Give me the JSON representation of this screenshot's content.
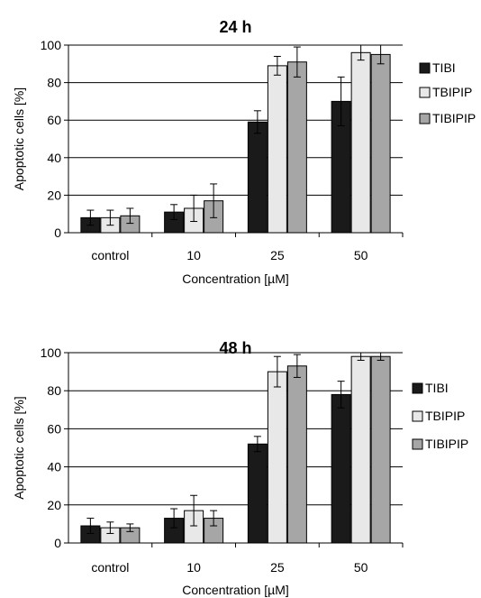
{
  "chart_data": [
    {
      "type": "bar",
      "title": "24 h",
      "xlabel": "Concentration [µM]",
      "ylabel": "Apoptotic cells [%]",
      "ylim": [
        0,
        100
      ],
      "yticks": [
        0,
        20,
        40,
        60,
        80,
        100
      ],
      "grid": true,
      "legend_position": "right",
      "categories": [
        "control",
        "10",
        "25",
        "50"
      ],
      "series": [
        {
          "name": "TIBI",
          "color": "#1a1a1a",
          "values": [
            8,
            11,
            59,
            70
          ],
          "errors": [
            4,
            4,
            6,
            13
          ]
        },
        {
          "name": "TBIPIP",
          "color": "#e8e8e8",
          "values": [
            8,
            13,
            89,
            96
          ],
          "errors": [
            4,
            7,
            5,
            4
          ]
        },
        {
          "name": "TIBIPIP",
          "color": "#a6a6a6",
          "values": [
            9,
            17,
            91,
            95
          ],
          "errors": [
            4,
            9,
            8,
            5
          ]
        }
      ]
    },
    {
      "type": "bar",
      "title": "48 h",
      "xlabel": "Concentration [µM]",
      "ylabel": "Apoptotic cells [%]",
      "ylim": [
        0,
        100
      ],
      "yticks": [
        0,
        20,
        40,
        60,
        80,
        100
      ],
      "grid": true,
      "legend_position": "right",
      "categories": [
        "control",
        "10",
        "25",
        "50"
      ],
      "series": [
        {
          "name": "TIBI",
          "color": "#1a1a1a",
          "values": [
            9,
            13,
            52,
            78
          ],
          "errors": [
            4,
            5,
            4,
            7
          ]
        },
        {
          "name": "TBIPIP",
          "color": "#e8e8e8",
          "values": [
            8,
            17,
            90,
            98
          ],
          "errors": [
            3,
            8,
            8,
            2
          ]
        },
        {
          "name": "TIBIPIP",
          "color": "#a6a6a6",
          "values": [
            8,
            13,
            93,
            98
          ],
          "errors": [
            2,
            4,
            6,
            2
          ]
        }
      ]
    }
  ]
}
